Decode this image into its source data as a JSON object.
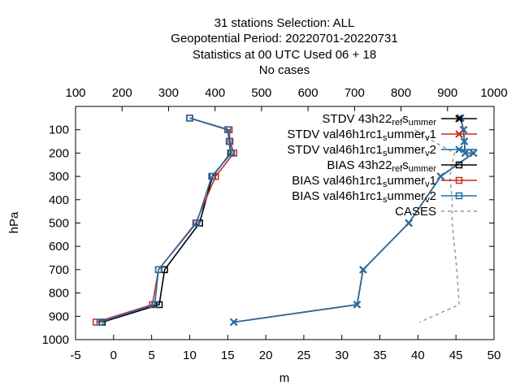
{
  "chart_data": {
    "type": "line",
    "title_lines": [
      "31 stations Selection: ALL",
      "Geopotential  Period: 20220701-20220731",
      "Statistics at 00 UTC  Used  06  + 18",
      "No cases"
    ],
    "xlabel": "m",
    "ylabel": "hPa",
    "xlim": [
      -5,
      50
    ],
    "ylim": [
      1000,
      0
    ],
    "x_ticks": [
      "-5",
      "0",
      "5",
      "10",
      "15",
      "20",
      "25",
      "30",
      "35",
      "40",
      "45",
      "50"
    ],
    "y_ticks": [
      "100",
      "200",
      "300",
      "400",
      "500",
      "600",
      "700",
      "800",
      "900",
      "1000"
    ],
    "x2lim": [
      100,
      1000
    ],
    "x2_ticks": [
      "100",
      "200",
      "300",
      "400",
      "500",
      "600",
      "700",
      "800",
      "900",
      "1000"
    ],
    "grid": false,
    "legend_position": "top-right",
    "series": [
      {
        "name": "STDV 43h22_ref_summer",
        "legend_label": "STDV 43h22",
        "legend_sub": [
          "ref",
          "s",
          "ummer"
        ],
        "color": "#000000",
        "marker": "cross",
        "dash": false,
        "axis": "x1",
        "points": [
          [
            45.6,
            50
          ],
          [
            46.0,
            100
          ],
          [
            46.1,
            150
          ],
          [
            46.2,
            200
          ],
          [
            47.3,
            200
          ],
          [
            43.0,
            300
          ],
          [
            38.8,
            500
          ],
          [
            32.8,
            700
          ],
          [
            32.0,
            850
          ],
          [
            15.8,
            925
          ]
        ]
      },
      {
        "name": "STDV val46h1rc1_summer_v1",
        "legend_label": "STDV val46h1rc1",
        "legend_sub": [
          "s",
          "ummer",
          "v",
          "1"
        ],
        "color": "#cc2a1f",
        "marker": "cross",
        "dash": false,
        "axis": "x1",
        "points": [
          [
            45.6,
            50
          ],
          [
            46.0,
            100
          ],
          [
            46.1,
            150
          ],
          [
            46.2,
            200
          ],
          [
            47.3,
            200
          ],
          [
            43.0,
            300
          ],
          [
            38.8,
            500
          ],
          [
            32.8,
            700
          ],
          [
            32.0,
            850
          ],
          [
            15.8,
            925
          ]
        ]
      },
      {
        "name": "STDV val46h1rc1_summer_v2",
        "legend_label": "STDV val46h1rc1",
        "legend_sub": [
          "s",
          "ummer",
          "v",
          "2"
        ],
        "color": "#1f6fa8",
        "marker": "cross",
        "dash": false,
        "axis": "x1",
        "points": [
          [
            45.6,
            50
          ],
          [
            46.0,
            100
          ],
          [
            46.1,
            150
          ],
          [
            46.2,
            200
          ],
          [
            47.3,
            200
          ],
          [
            43.0,
            300
          ],
          [
            38.8,
            500
          ],
          [
            32.8,
            700
          ],
          [
            32.0,
            850
          ],
          [
            15.8,
            925
          ]
        ]
      },
      {
        "name": "BIAS 43h22_ref_summer",
        "legend_label": "BIAS 43h22",
        "legend_sub": [
          "ref",
          "s",
          "ummer"
        ],
        "color": "#000000",
        "marker": "square",
        "dash": false,
        "axis": "x1",
        "points": [
          [
            10.0,
            50
          ],
          [
            15.0,
            100
          ],
          [
            15.2,
            150
          ],
          [
            15.4,
            200
          ],
          [
            13.0,
            300
          ],
          [
            11.3,
            500
          ],
          [
            6.7,
            700
          ],
          [
            6.0,
            850
          ],
          [
            -1.5,
            925
          ]
        ]
      },
      {
        "name": "BIAS val46h1rc1_summer_v1",
        "legend_label": "BIAS val46h1rc1",
        "legend_sub": [
          "s",
          "ummer",
          "v",
          "1"
        ],
        "color": "#cc2a1f",
        "marker": "square",
        "dash": false,
        "axis": "x1",
        "points": [
          [
            10.0,
            50
          ],
          [
            15.2,
            100
          ],
          [
            15.3,
            150
          ],
          [
            15.8,
            200
          ],
          [
            13.4,
            300
          ],
          [
            10.8,
            500
          ],
          [
            5.9,
            700
          ],
          [
            5.1,
            850
          ],
          [
            -2.3,
            925
          ]
        ]
      },
      {
        "name": "BIAS val46h1rc1_summer_v2",
        "legend_label": "BIAS val46h1rc1",
        "legend_sub": [
          "s",
          "ummer",
          "v",
          "2"
        ],
        "color": "#1f6fa8",
        "marker": "square",
        "dash": false,
        "axis": "x1",
        "points": [
          [
            10.0,
            50
          ],
          [
            15.0,
            100
          ],
          [
            15.2,
            150
          ],
          [
            15.5,
            200
          ],
          [
            12.9,
            300
          ],
          [
            10.9,
            500
          ],
          [
            5.9,
            700
          ],
          [
            5.4,
            850
          ],
          [
            -1.8,
            925
          ]
        ]
      },
      {
        "name": "CASES",
        "legend_label": "CASES",
        "legend_sub": [],
        "color": "#999999",
        "marker": "none",
        "dash": true,
        "axis": "x2",
        "points": [
          [
            830,
            100
          ],
          [
            870,
            150
          ],
          [
            915,
            200
          ],
          [
            905,
            300
          ],
          [
            910,
            400
          ],
          [
            910,
            500
          ],
          [
            920,
            700
          ],
          [
            925,
            850
          ],
          [
            840,
            925
          ]
        ]
      }
    ]
  }
}
